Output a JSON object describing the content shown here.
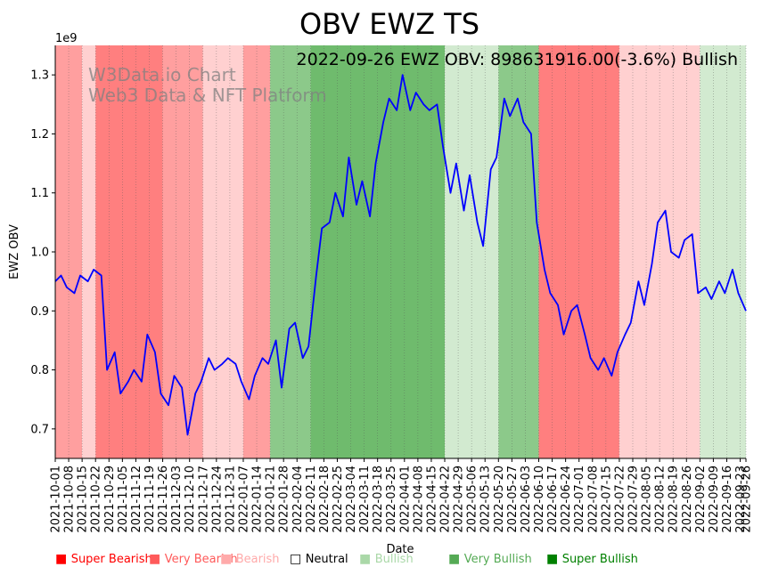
{
  "chart_data": {
    "type": "line",
    "title": "OBV EWZ TS",
    "annotation": "2022-09-26 EWZ OBV: 898631916.00(-3.6%) Bullish",
    "watermark": [
      "W3Data.io Chart",
      "Web3 Data & NFT Platform"
    ],
    "xlabel": "Date",
    "ylabel": "EWZ OBV",
    "y_offset_label": "1e9",
    "ylim": [
      0.65,
      1.35
    ],
    "y_ticks": [
      "0.7",
      "0.8",
      "0.9",
      "1.0",
      "1.1",
      "1.2",
      "1.3"
    ],
    "x_start": "2021-10-01",
    "x_end": "2022-09-26",
    "x_ticks": [
      "2021-10-01",
      "2021-10-08",
      "2021-10-15",
      "2021-10-22",
      "2021-10-29",
      "2021-11-05",
      "2021-11-12",
      "2021-11-19",
      "2021-11-26",
      "2021-12-03",
      "2021-12-10",
      "2021-12-17",
      "2021-12-24",
      "2021-12-31",
      "2022-01-07",
      "2022-01-14",
      "2022-01-21",
      "2022-01-28",
      "2022-02-04",
      "2022-02-11",
      "2022-02-18",
      "2022-02-25",
      "2022-03-04",
      "2022-03-11",
      "2022-03-18",
      "2022-03-25",
      "2022-04-01",
      "2022-04-08",
      "2022-04-15",
      "2022-04-22",
      "2022-04-29",
      "2022-05-06",
      "2022-05-13",
      "2022-05-20",
      "2022-05-27",
      "2022-06-03",
      "2022-06-10",
      "2022-06-17",
      "2022-06-24",
      "2022-07-01",
      "2022-07-08",
      "2022-07-15",
      "2022-07-22",
      "2022-07-29",
      "2022-08-05",
      "2022-08-12",
      "2022-08-19",
      "2022-08-26",
      "2022-09-02",
      "2022-09-09",
      "2022-09-16",
      "2022-09-23",
      "2022-09-26"
    ],
    "grid": "vertical dotted",
    "series": [
      {
        "color": "#0000ff",
        "x": [
          "2021-10-01",
          "2021-10-04",
          "2021-10-07",
          "2021-10-11",
          "2021-10-14",
          "2021-10-18",
          "2021-10-21",
          "2021-10-25",
          "2021-10-28",
          "2021-11-01",
          "2021-11-04",
          "2021-11-08",
          "2021-11-11",
          "2021-11-15",
          "2021-11-18",
          "2021-11-22",
          "2021-11-25",
          "2021-11-29",
          "2021-12-02",
          "2021-12-06",
          "2021-12-09",
          "2021-12-13",
          "2021-12-16",
          "2021-12-20",
          "2021-12-23",
          "2021-12-27",
          "2021-12-30",
          "2022-01-03",
          "2022-01-06",
          "2022-01-10",
          "2022-01-13",
          "2022-01-17",
          "2022-01-20",
          "2022-01-24",
          "2022-01-27",
          "2022-01-31",
          "2022-02-03",
          "2022-02-07",
          "2022-02-10",
          "2022-02-14",
          "2022-02-17",
          "2022-02-21",
          "2022-02-24",
          "2022-02-28",
          "2022-03-03",
          "2022-03-07",
          "2022-03-10",
          "2022-03-14",
          "2022-03-17",
          "2022-03-21",
          "2022-03-24",
          "2022-03-28",
          "2022-03-31",
          "2022-04-04",
          "2022-04-07",
          "2022-04-11",
          "2022-04-14",
          "2022-04-18",
          "2022-04-21",
          "2022-04-25",
          "2022-04-28",
          "2022-05-02",
          "2022-05-05",
          "2022-05-09",
          "2022-05-12",
          "2022-05-16",
          "2022-05-19",
          "2022-05-23",
          "2022-05-26",
          "2022-05-30",
          "2022-06-02",
          "2022-06-06",
          "2022-06-09",
          "2022-06-13",
          "2022-06-16",
          "2022-06-20",
          "2022-06-23",
          "2022-06-27",
          "2022-06-30",
          "2022-07-04",
          "2022-07-07",
          "2022-07-11",
          "2022-07-14",
          "2022-07-18",
          "2022-07-21",
          "2022-07-25",
          "2022-07-28",
          "2022-08-01",
          "2022-08-04",
          "2022-08-08",
          "2022-08-11",
          "2022-08-15",
          "2022-08-18",
          "2022-08-22",
          "2022-08-25",
          "2022-08-29",
          "2022-09-01",
          "2022-09-05",
          "2022-09-08",
          "2022-09-12",
          "2022-09-15",
          "2022-09-19",
          "2022-09-22",
          "2022-09-26"
        ],
        "y": [
          0.95,
          0.96,
          0.94,
          0.93,
          0.96,
          0.95,
          0.97,
          0.96,
          0.8,
          0.83,
          0.76,
          0.78,
          0.8,
          0.78,
          0.86,
          0.83,
          0.76,
          0.74,
          0.79,
          0.77,
          0.69,
          0.76,
          0.78,
          0.82,
          0.8,
          0.81,
          0.82,
          0.81,
          0.78,
          0.75,
          0.79,
          0.82,
          0.81,
          0.85,
          0.77,
          0.87,
          0.88,
          0.82,
          0.84,
          0.96,
          1.04,
          1.05,
          1.1,
          1.06,
          1.16,
          1.08,
          1.12,
          1.06,
          1.15,
          1.22,
          1.26,
          1.24,
          1.3,
          1.24,
          1.27,
          1.25,
          1.24,
          1.25,
          1.18,
          1.1,
          1.15,
          1.07,
          1.13,
          1.05,
          1.01,
          1.14,
          1.16,
          1.26,
          1.23,
          1.26,
          1.22,
          1.2,
          1.05,
          0.97,
          0.93,
          0.91,
          0.86,
          0.9,
          0.91,
          0.86,
          0.82,
          0.8,
          0.82,
          0.79,
          0.83,
          0.86,
          0.88,
          0.95,
          0.91,
          0.98,
          1.05,
          1.07,
          1.0,
          0.99,
          1.02,
          1.03,
          0.93,
          0.94,
          0.92,
          0.95,
          0.93,
          0.97,
          0.93,
          0.9
        ]
      }
    ],
    "signal_bands": [
      {
        "start": "2021-10-01",
        "end": "2021-10-15",
        "signal": "Very Bearish"
      },
      {
        "start": "2021-10-15",
        "end": "2021-10-22",
        "signal": "Bearish"
      },
      {
        "start": "2021-10-22",
        "end": "2021-11-26",
        "signal": "Super Bearish"
      },
      {
        "start": "2021-11-26",
        "end": "2021-12-17",
        "signal": "Very Bearish"
      },
      {
        "start": "2021-12-17",
        "end": "2022-01-07",
        "signal": "Bearish"
      },
      {
        "start": "2022-01-07",
        "end": "2022-01-21",
        "signal": "Very Bearish"
      },
      {
        "start": "2022-01-21",
        "end": "2022-02-11",
        "signal": "Very Bullish"
      },
      {
        "start": "2022-02-11",
        "end": "2022-04-22",
        "signal": "Super Bullish"
      },
      {
        "start": "2022-04-22",
        "end": "2022-05-20",
        "signal": "Bullish"
      },
      {
        "start": "2022-05-20",
        "end": "2022-06-10",
        "signal": "Very Bullish"
      },
      {
        "start": "2022-06-10",
        "end": "2022-07-22",
        "signal": "Super Bearish"
      },
      {
        "start": "2022-07-22",
        "end": "2022-09-02",
        "signal": "Bearish"
      },
      {
        "start": "2022-09-02",
        "end": "2022-09-26",
        "signal": "Bullish"
      }
    ],
    "signal_colors": {
      "Super Bearish": "#ff7f7f",
      "Very Bearish": "#ff9f9f",
      "Bearish": "#ffd0d0",
      "Bullish": "#d2ead0",
      "Very Bullish": "#8cc98a",
      "Super Bullish": "#6fbb6d"
    },
    "legend": [
      {
        "label": "Super Bearish",
        "color": "#ff0000",
        "symbol": "■"
      },
      {
        "label": "Very Bearish",
        "color": "#ff5a5a",
        "symbol": "■"
      },
      {
        "label": "Bearish",
        "color": "#ffaaaa",
        "symbol": "■"
      },
      {
        "label": "Neutral",
        "color": "#000000",
        "symbol": "□"
      },
      {
        "label": "Bullish",
        "color": "#aad8a8",
        "symbol": "■"
      },
      {
        "label": "Very Bullish",
        "color": "#55aa55",
        "symbol": "■"
      },
      {
        "label": "Super Bullish",
        "color": "#008000",
        "symbol": "■"
      }
    ]
  }
}
